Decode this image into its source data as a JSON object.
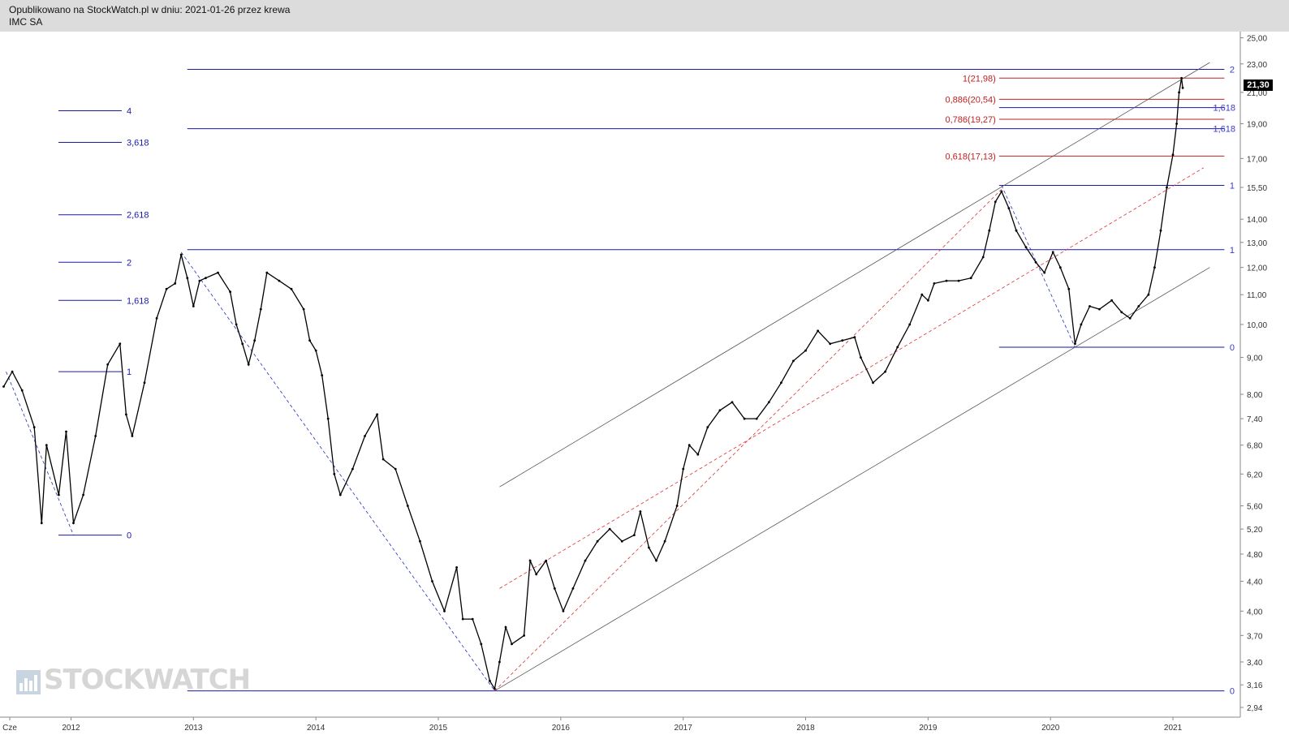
{
  "header": {
    "published": "Opublikowano na StockWatch.pl w dniu: 2021-01-26 przez krewa",
    "ticker": "IMC SA"
  },
  "watermark": "STOCKWATCH",
  "last_price": "21,30",
  "chart_data": {
    "type": "line",
    "scale": "log",
    "ylim": [
      2.85,
      25.5
    ],
    "xlim": [
      2011.42,
      2021.55
    ],
    "y_ticks": [
      {
        "v": 25.0,
        "label": "25,00"
      },
      {
        "v": 23.0,
        "label": "23,00"
      },
      {
        "v": 21.0,
        "label": "21,00"
      },
      {
        "v": 19.0,
        "label": "19,00"
      },
      {
        "v": 17.0,
        "label": "17,00"
      },
      {
        "v": 15.5,
        "label": "15,50"
      },
      {
        "v": 14.0,
        "label": "14,00"
      },
      {
        "v": 13.0,
        "label": "13,00"
      },
      {
        "v": 12.0,
        "label": "12,00"
      },
      {
        "v": 11.0,
        "label": "11,00"
      },
      {
        "v": 10.0,
        "label": "10,00"
      },
      {
        "v": 9.0,
        "label": "9,00"
      },
      {
        "v": 8.0,
        "label": "8,00"
      },
      {
        "v": 7.4,
        "label": "7,40"
      },
      {
        "v": 6.8,
        "label": "6,80"
      },
      {
        "v": 6.2,
        "label": "6,20"
      },
      {
        "v": 5.6,
        "label": "5,60"
      },
      {
        "v": 5.2,
        "label": "5,20"
      },
      {
        "v": 4.8,
        "label": "4,80"
      },
      {
        "v": 4.4,
        "label": "4,40"
      },
      {
        "v": 4.0,
        "label": "4,00"
      },
      {
        "v": 3.7,
        "label": "3,70"
      },
      {
        "v": 3.4,
        "label": "3,40"
      },
      {
        "v": 3.16,
        "label": "3,16"
      },
      {
        "v": 2.94,
        "label": "2,94"
      }
    ],
    "x_ticks": [
      {
        "x": 2011.5,
        "label": "Cze"
      },
      {
        "x": 2012.0,
        "label": "2012"
      },
      {
        "x": 2013.0,
        "label": "2013"
      },
      {
        "x": 2014.0,
        "label": "2014"
      },
      {
        "x": 2015.0,
        "label": "2015"
      },
      {
        "x": 2016.0,
        "label": "2016"
      },
      {
        "x": 2017.0,
        "label": "2017"
      },
      {
        "x": 2018.0,
        "label": "2018"
      },
      {
        "x": 2019.0,
        "label": "2019"
      },
      {
        "x": 2020.0,
        "label": "2020"
      },
      {
        "x": 2021.0,
        "label": "2021"
      }
    ],
    "series": [
      {
        "color": "#000000",
        "points": [
          [
            2011.45,
            8.2
          ],
          [
            2011.52,
            8.6
          ],
          [
            2011.6,
            8.1
          ],
          [
            2011.7,
            7.2
          ],
          [
            2011.76,
            5.3
          ],
          [
            2011.8,
            6.8
          ],
          [
            2011.9,
            5.8
          ],
          [
            2011.96,
            7.1
          ],
          [
            2012.02,
            5.3
          ],
          [
            2012.1,
            5.8
          ],
          [
            2012.2,
            7.0
          ],
          [
            2012.3,
            8.8
          ],
          [
            2012.4,
            9.4
          ],
          [
            2012.45,
            7.5
          ],
          [
            2012.5,
            7.0
          ],
          [
            2012.6,
            8.3
          ],
          [
            2012.7,
            10.2
          ],
          [
            2012.78,
            11.2
          ],
          [
            2012.85,
            11.4
          ],
          [
            2012.9,
            12.5
          ],
          [
            2012.95,
            11.6
          ],
          [
            2013.0,
            10.6
          ],
          [
            2013.05,
            11.5
          ],
          [
            2013.1,
            11.6
          ],
          [
            2013.2,
            11.8
          ],
          [
            2013.3,
            11.1
          ],
          [
            2013.35,
            10.0
          ],
          [
            2013.4,
            9.4
          ],
          [
            2013.45,
            8.8
          ],
          [
            2013.5,
            9.5
          ],
          [
            2013.55,
            10.5
          ],
          [
            2013.6,
            11.8
          ],
          [
            2013.7,
            11.5
          ],
          [
            2013.8,
            11.2
          ],
          [
            2013.9,
            10.5
          ],
          [
            2013.95,
            9.5
          ],
          [
            2014.0,
            9.2
          ],
          [
            2014.05,
            8.5
          ],
          [
            2014.1,
            7.4
          ],
          [
            2014.15,
            6.2
          ],
          [
            2014.2,
            5.8
          ],
          [
            2014.3,
            6.3
          ],
          [
            2014.4,
            7.0
          ],
          [
            2014.5,
            7.5
          ],
          [
            2014.55,
            6.5
          ],
          [
            2014.65,
            6.3
          ],
          [
            2014.75,
            5.6
          ],
          [
            2014.85,
            5.0
          ],
          [
            2014.95,
            4.4
          ],
          [
            2015.05,
            4.0
          ],
          [
            2015.15,
            4.6
          ],
          [
            2015.2,
            3.9
          ],
          [
            2015.28,
            3.9
          ],
          [
            2015.35,
            3.6
          ],
          [
            2015.42,
            3.2
          ],
          [
            2015.46,
            3.12
          ],
          [
            2015.5,
            3.4
          ],
          [
            2015.55,
            3.8
          ],
          [
            2015.6,
            3.6
          ],
          [
            2015.7,
            3.7
          ],
          [
            2015.75,
            4.7
          ],
          [
            2015.8,
            4.5
          ],
          [
            2015.88,
            4.7
          ],
          [
            2015.95,
            4.3
          ],
          [
            2016.02,
            4.0
          ],
          [
            2016.1,
            4.3
          ],
          [
            2016.2,
            4.7
          ],
          [
            2016.3,
            5.0
          ],
          [
            2016.4,
            5.2
          ],
          [
            2016.5,
            5.0
          ],
          [
            2016.6,
            5.1
          ],
          [
            2016.65,
            5.5
          ],
          [
            2016.72,
            4.9
          ],
          [
            2016.78,
            4.7
          ],
          [
            2016.85,
            5.0
          ],
          [
            2016.95,
            5.6
          ],
          [
            2017.0,
            6.3
          ],
          [
            2017.05,
            6.8
          ],
          [
            2017.12,
            6.6
          ],
          [
            2017.2,
            7.2
          ],
          [
            2017.3,
            7.6
          ],
          [
            2017.4,
            7.8
          ],
          [
            2017.5,
            7.4
          ],
          [
            2017.6,
            7.4
          ],
          [
            2017.7,
            7.8
          ],
          [
            2017.8,
            8.3
          ],
          [
            2017.9,
            8.9
          ],
          [
            2018.0,
            9.2
          ],
          [
            2018.1,
            9.8
          ],
          [
            2018.2,
            9.4
          ],
          [
            2018.3,
            9.5
          ],
          [
            2018.4,
            9.6
          ],
          [
            2018.45,
            9.0
          ],
          [
            2018.55,
            8.3
          ],
          [
            2018.65,
            8.6
          ],
          [
            2018.75,
            9.3
          ],
          [
            2018.85,
            10.0
          ],
          [
            2018.95,
            11.0
          ],
          [
            2019.0,
            10.8
          ],
          [
            2019.05,
            11.4
          ],
          [
            2019.15,
            11.5
          ],
          [
            2019.25,
            11.5
          ],
          [
            2019.35,
            11.6
          ],
          [
            2019.45,
            12.4
          ],
          [
            2019.5,
            13.5
          ],
          [
            2019.55,
            14.8
          ],
          [
            2019.6,
            15.3
          ],
          [
            2019.66,
            14.5
          ],
          [
            2019.72,
            13.5
          ],
          [
            2019.8,
            12.8
          ],
          [
            2019.88,
            12.2
          ],
          [
            2019.95,
            11.8
          ],
          [
            2020.02,
            12.6
          ],
          [
            2020.08,
            12.0
          ],
          [
            2020.15,
            11.2
          ],
          [
            2020.2,
            9.4
          ],
          [
            2020.25,
            10.0
          ],
          [
            2020.32,
            10.6
          ],
          [
            2020.4,
            10.5
          ],
          [
            2020.5,
            10.8
          ],
          [
            2020.58,
            10.4
          ],
          [
            2020.65,
            10.2
          ],
          [
            2020.72,
            10.6
          ],
          [
            2020.8,
            11.0
          ],
          [
            2020.85,
            12.0
          ],
          [
            2020.9,
            13.5
          ],
          [
            2020.95,
            15.5
          ],
          [
            2021.0,
            17.2
          ],
          [
            2021.03,
            19.0
          ],
          [
            2021.05,
            21.0
          ],
          [
            2021.07,
            21.98
          ],
          [
            2021.08,
            21.3
          ]
        ]
      }
    ],
    "fib_left": [
      {
        "v": 5.1,
        "label": "0"
      },
      {
        "v": 8.6,
        "label": "1"
      },
      {
        "v": 10.8,
        "label": "1,618"
      },
      {
        "v": 12.2,
        "label": "2"
      },
      {
        "v": 14.2,
        "label": "2,618"
      },
      {
        "v": 17.9,
        "label": "3,618"
      },
      {
        "v": 19.8,
        "label": "4"
      }
    ],
    "fib_right": [
      {
        "v": 22.6,
        "label": "2"
      },
      {
        "v": 21.98,
        "label": "1(21,98)"
      },
      {
        "v": 20.54,
        "label": "0,886(20,54)"
      },
      {
        "v": 20.0,
        "label": "1,618"
      },
      {
        "v": 19.27,
        "label": "0,786(19,27)"
      },
      {
        "v": 18.7,
        "label": "1,618"
      },
      {
        "v": 17.13,
        "label": "0,618(17,13)"
      },
      {
        "v": 15.6,
        "label": "1"
      },
      {
        "v": 12.7,
        "label": "1"
      },
      {
        "v": 9.3,
        "label": "0"
      },
      {
        "v": 3.1,
        "label": "0"
      }
    ]
  }
}
